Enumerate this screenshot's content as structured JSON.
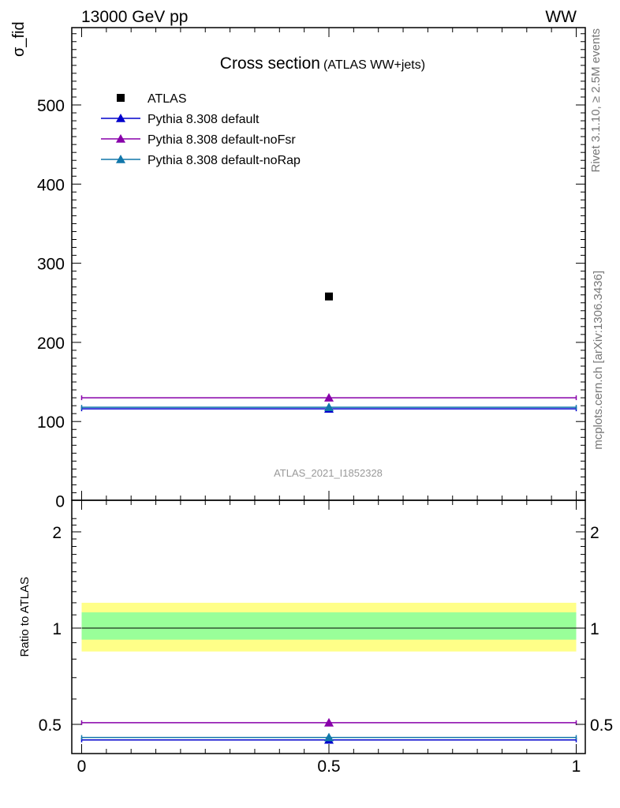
{
  "header": {
    "energy_label": "13000 GeV pp",
    "process_label": "WW"
  },
  "side_labels": {
    "rivet": "Rivet 3.1.10, ≥ 2.5M events",
    "mcplots": "mcplots.cern.ch [arXiv:1306.3436]"
  },
  "chart_data": [
    {
      "type": "scatter",
      "title": "Cross section",
      "subtitle": "(ATLAS WW+jets)",
      "ylabel": "σ_fid",
      "ylim": [
        0,
        600
      ],
      "xlim": [
        0,
        1
      ],
      "yticks": [
        "0",
        "100",
        "200",
        "300",
        "400",
        "500"
      ],
      "watermark": "ATLAS_2021_I1852328",
      "legend_position": "top-left",
      "data": {
        "name": "ATLAS",
        "x": [
          0.5
        ],
        "y": [
          258
        ],
        "color": "#000000"
      },
      "series": [
        {
          "name": "Pythia 8.308 default",
          "x": [
            0.5
          ],
          "xerr": [
            0.5
          ],
          "y": [
            116
          ],
          "color": "#0000cc"
        },
        {
          "name": "Pythia 8.308 default-noFsr",
          "x": [
            0.5
          ],
          "xerr": [
            0.5
          ],
          "y": [
            130
          ],
          "color": "#8800aa"
        },
        {
          "name": "Pythia 8.308 default-noRap",
          "x": [
            0.5
          ],
          "xerr": [
            0.5
          ],
          "y": [
            118
          ],
          "color": "#1177aa"
        }
      ]
    },
    {
      "type": "scatter",
      "ylabel": "Ratio to ATLAS",
      "ylim": [
        0.36,
        2.3
      ],
      "xlim": [
        0,
        1
      ],
      "xticks": [
        "0",
        "0.5",
        "1"
      ],
      "yticks": [
        "0.5",
        "1",
        "2"
      ],
      "bands": [
        {
          "low": 0.845,
          "high": 1.2,
          "color": "#ffff88"
        },
        {
          "low": 0.92,
          "high": 1.12,
          "color": "#99ff99"
        }
      ],
      "reference_line": 1,
      "series": [
        {
          "name": "Pythia 8.308 default",
          "x": [
            0.5
          ],
          "y": [
            0.447
          ],
          "color": "#0000cc"
        },
        {
          "name": "Pythia 8.308 default-noFsr",
          "x": [
            0.5
          ],
          "y": [
            0.506
          ],
          "color": "#8800aa"
        },
        {
          "name": "Pythia 8.308 default-noRap",
          "x": [
            0.5
          ],
          "y": [
            0.455
          ],
          "color": "#1177aa"
        }
      ]
    }
  ]
}
